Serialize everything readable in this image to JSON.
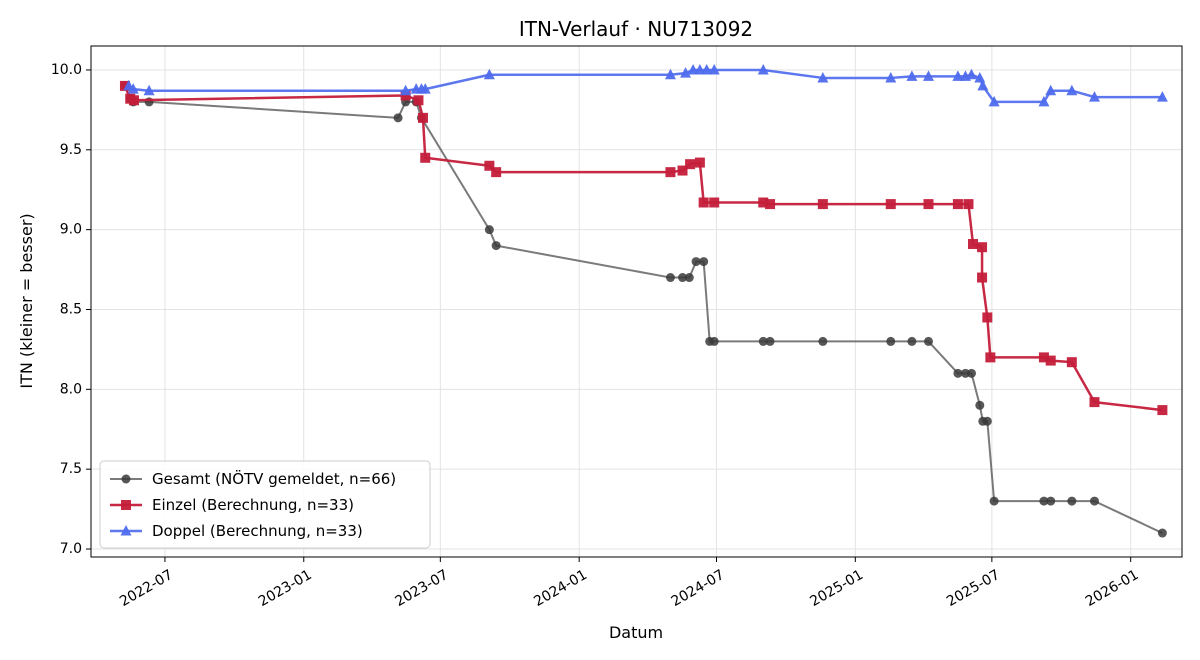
{
  "chart_data": {
    "type": "line",
    "title": "ITN-Verlauf · NU713092",
    "xlabel": "Datum",
    "ylabel": "ITN  (kleiner = besser)",
    "xlim": [
      "2022-03-25",
      "2026-03-10"
    ],
    "ylim": [
      6.95,
      10.15
    ],
    "x_ticks": [
      "2022-07",
      "2023-01",
      "2023-07",
      "2024-01",
      "2024-07",
      "2025-01",
      "2025-07",
      "2026-01"
    ],
    "y_ticks": [
      "7.0",
      "7.5",
      "8.0",
      "8.5",
      "9.0",
      "9.5",
      "10.0"
    ],
    "grid": true,
    "legend_position": "lower-left",
    "series": [
      {
        "name": "Gesamt (NÖTV gemeldet, n=66)",
        "color": "#555555",
        "marker": "circle",
        "points": [
          [
            "2022-05-09",
            9.9
          ],
          [
            "2022-05-16",
            9.82
          ],
          [
            "2022-05-20",
            9.8
          ],
          [
            "2022-06-10",
            9.8
          ],
          [
            "2023-05-06",
            9.7
          ],
          [
            "2023-05-16",
            9.8
          ],
          [
            "2023-05-30",
            9.8
          ],
          [
            "2023-06-06",
            9.7
          ],
          [
            "2023-09-04",
            9.0
          ],
          [
            "2023-09-13",
            8.9
          ],
          [
            "2024-05-01",
            8.7
          ],
          [
            "2024-05-17",
            8.7
          ],
          [
            "2024-05-26",
            8.7
          ],
          [
            "2024-06-04",
            8.8
          ],
          [
            "2024-06-14",
            8.8
          ],
          [
            "2024-06-22",
            8.3
          ],
          [
            "2024-06-28",
            8.3
          ],
          [
            "2024-09-01",
            8.3
          ],
          [
            "2024-09-10",
            8.3
          ],
          [
            "2024-11-19",
            8.3
          ],
          [
            "2025-02-17",
            8.3
          ],
          [
            "2025-03-17",
            8.3
          ],
          [
            "2025-04-08",
            8.3
          ],
          [
            "2025-05-17",
            8.1
          ],
          [
            "2025-05-27",
            8.1
          ],
          [
            "2025-06-04",
            8.1
          ],
          [
            "2025-06-15",
            7.9
          ],
          [
            "2025-06-19",
            7.8
          ],
          [
            "2025-06-25",
            7.8
          ],
          [
            "2025-07-04",
            7.3
          ],
          [
            "2025-09-08",
            7.3
          ],
          [
            "2025-09-17",
            7.3
          ],
          [
            "2025-10-15",
            7.3
          ],
          [
            "2025-11-14",
            7.3
          ],
          [
            "2026-02-12",
            7.1
          ]
        ]
      },
      {
        "name": "Einzel (Berechnung, n=33)",
        "color": "#c41e3a",
        "marker": "square",
        "points": [
          [
            "2022-05-09",
            9.9
          ],
          [
            "2022-05-16",
            9.82
          ],
          [
            "2022-05-21",
            9.81
          ],
          [
            "2023-05-16",
            9.84
          ],
          [
            "2023-06-02",
            9.81
          ],
          [
            "2023-06-08",
            9.7
          ],
          [
            "2023-06-11",
            9.45
          ],
          [
            "2023-09-04",
            9.4
          ],
          [
            "2023-09-13",
            9.36
          ],
          [
            "2024-05-01",
            9.36
          ],
          [
            "2024-05-17",
            9.37
          ],
          [
            "2024-05-27",
            9.41
          ],
          [
            "2024-06-09",
            9.42
          ],
          [
            "2024-06-14",
            9.17
          ],
          [
            "2024-06-28",
            9.17
          ],
          [
            "2024-09-01",
            9.17
          ],
          [
            "2024-09-10",
            9.16
          ],
          [
            "2024-11-19",
            9.16
          ],
          [
            "2025-02-17",
            9.16
          ],
          [
            "2025-04-08",
            9.16
          ],
          [
            "2025-05-17",
            9.16
          ],
          [
            "2025-05-31",
            9.16
          ],
          [
            "2025-06-06",
            8.91
          ],
          [
            "2025-06-18",
            8.89
          ],
          [
            "2025-06-18",
            8.7
          ],
          [
            "2025-06-25",
            8.45
          ],
          [
            "2025-06-29",
            8.2
          ],
          [
            "2025-09-08",
            8.2
          ],
          [
            "2025-09-17",
            8.18
          ],
          [
            "2025-10-15",
            8.17
          ],
          [
            "2025-11-14",
            7.92
          ],
          [
            "2026-02-12",
            7.87
          ]
        ]
      },
      {
        "name": "Doppel (Berechnung, n=33)",
        "color": "#4f6bed",
        "marker": "triangle",
        "points": [
          [
            "2022-05-14",
            9.9
          ],
          [
            "2022-05-20",
            9.88
          ],
          [
            "2022-06-10",
            9.87
          ],
          [
            "2023-05-16",
            9.87
          ],
          [
            "2023-05-30",
            9.88
          ],
          [
            "2023-06-06",
            9.88
          ],
          [
            "2023-06-11",
            9.88
          ],
          [
            "2023-09-04",
            9.97
          ],
          [
            "2024-05-01",
            9.97
          ],
          [
            "2024-05-21",
            9.98
          ],
          [
            "2024-05-31",
            10.0
          ],
          [
            "2024-06-09",
            10.0
          ],
          [
            "2024-06-18",
            10.0
          ],
          [
            "2024-06-28",
            10.0
          ],
          [
            "2024-09-01",
            10.0
          ],
          [
            "2024-11-19",
            9.95
          ],
          [
            "2025-02-17",
            9.95
          ],
          [
            "2025-03-17",
            9.96
          ],
          [
            "2025-04-08",
            9.96
          ],
          [
            "2025-05-17",
            9.96
          ],
          [
            "2025-05-27",
            9.96
          ],
          [
            "2025-06-04",
            9.97
          ],
          [
            "2025-06-15",
            9.95
          ],
          [
            "2025-06-19",
            9.9
          ],
          [
            "2025-07-04",
            9.8
          ],
          [
            "2025-09-08",
            9.8
          ],
          [
            "2025-09-17",
            9.87
          ],
          [
            "2025-10-15",
            9.87
          ],
          [
            "2025-11-14",
            9.83
          ],
          [
            "2026-02-12",
            9.83
          ]
        ]
      }
    ]
  }
}
